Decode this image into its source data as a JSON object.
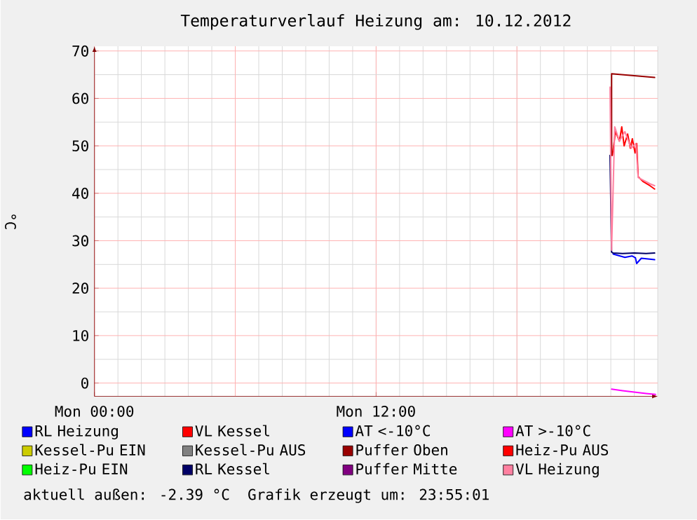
{
  "chart_data": {
    "type": "line",
    "title": "Temperaturverlauf Heizung am: 10.12.2012",
    "ylabel": "°C",
    "xlim": [
      "2012-12-10T00:00",
      "2012-12-11T00:00"
    ],
    "xticks": [
      {
        "value": "2012-12-10T00:00",
        "label": "Mon 00:00"
      },
      {
        "value": "2012-12-10T06:00",
        "label": null
      },
      {
        "value": "2012-12-10T12:00",
        "label": "Mon 12:00"
      },
      {
        "value": "2012-12-10T18:00",
        "label": null
      }
    ],
    "ylim": [
      -2.8,
      71
    ],
    "yticks": [
      0,
      10,
      20,
      30,
      40,
      50,
      60,
      70
    ],
    "grid": true,
    "legend": "bottom",
    "line_style": "solid",
    "annotations": [
      "aktuell außen: -2.39 °C",
      "Grafik erzeugt um: 23:55:01"
    ],
    "series": [
      {
        "name": "RL Heizung",
        "color": "#0000ff",
        "x": [
          "2012-12-10T22:06",
          "2012-12-10T22:36",
          "2012-12-10T22:54",
          "2012-12-10T23:03",
          "2012-12-10T23:06",
          "2012-12-10T23:18",
          "2012-12-10T23:52"
        ],
        "values": [
          27.2,
          26.5,
          26.8,
          26.4,
          25.2,
          26.3,
          26.0
        ]
      },
      {
        "name": "VL Kessel",
        "color": "#ff0000",
        "x": [
          "2012-12-10T22:04",
          "2012-12-10T22:12",
          "2012-12-10T22:22",
          "2012-12-10T22:28",
          "2012-12-10T22:34",
          "2012-12-10T22:43",
          "2012-12-10T22:50",
          "2012-12-10T22:55",
          "2012-12-10T23:02",
          "2012-12-10T23:06",
          "2012-12-10T23:10",
          "2012-12-10T23:22",
          "2012-12-10T23:40",
          "2012-12-10T23:52"
        ],
        "values": [
          48,
          53,
          51,
          54,
          50,
          52.5,
          49.5,
          51.5,
          48.5,
          50.5,
          43.5,
          42.5,
          41.6,
          40.9
        ]
      },
      {
        "name": "AT <-10°C",
        "color": "#0000ff"
      },
      {
        "name": "AT >-10°C",
        "color": "#ff00ff",
        "x": [
          "2012-12-10T22:02",
          "2012-12-10T22:30",
          "2012-12-10T23:00",
          "2012-12-10T23:30",
          "2012-12-10T23:54"
        ],
        "values": [
          -1.3,
          -1.6,
          -1.9,
          -2.2,
          -2.4
        ]
      },
      {
        "name": "Kessel-Pu EIN",
        "color": "#cccc00"
      },
      {
        "name": "Kessel-Pu AUS",
        "color": "#808080"
      },
      {
        "name": "Puffer Oben",
        "color": "#990000",
        "x": [
          "2012-12-10T22:02",
          "2012-12-10T22:02",
          "2012-12-10T23:52"
        ],
        "values": [
          48,
          65.2,
          64.4
        ]
      },
      {
        "name": "Heiz-Pu AUS",
        "color": "#ff0000"
      },
      {
        "name": "Heiz-Pu EIN",
        "color": "#00ff00"
      },
      {
        "name": "RL Kessel",
        "color": "#000066",
        "x": [
          "2012-12-10T21:58",
          "2012-12-10T22:02",
          "2012-12-10T22:06",
          "2012-12-10T22:30",
          "2012-12-10T23:00",
          "2012-12-10T23:30",
          "2012-12-10T23:52"
        ],
        "values": [
          48,
          27.6,
          27.4,
          27.3,
          27.4,
          27.3,
          27.4
        ]
      },
      {
        "name": "Puffer Mitte",
        "color": "#800080"
      },
      {
        "name": "VL Heizung",
        "color": "#ff80a0",
        "x": [
          "2012-12-10T21:58",
          "2012-12-10T22:02",
          "2012-12-10T22:10",
          "2012-12-10T22:22",
          "2012-12-10T22:36",
          "2012-12-10T22:52",
          "2012-12-10T23:04",
          "2012-12-10T23:10",
          "2012-12-10T23:22",
          "2012-12-10T23:40",
          "2012-12-10T23:52"
        ],
        "values": [
          62.4,
          28,
          54,
          51,
          53,
          49.5,
          50.5,
          43.3,
          42.8,
          42,
          41.6
        ]
      }
    ]
  }
}
